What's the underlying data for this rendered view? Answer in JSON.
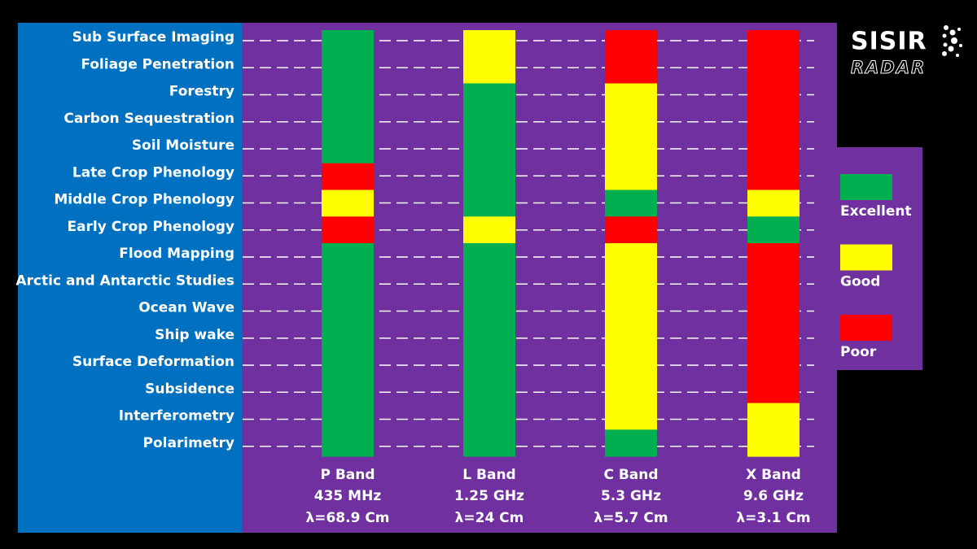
{
  "logo": {
    "name": "SISIR",
    "sub": "RADAR"
  },
  "applications": [
    "Sub Surface Imaging",
    "Foliage Penetration",
    "Forestry",
    "Carbon Sequestration",
    "Soil Moisture",
    "Late Crop Phenology",
    "Middle Crop Phenology",
    "Early Crop Phenology",
    "Flood Mapping",
    "Arctic and Antarctic Studies",
    "Ocean Wave",
    "Ship wake",
    "Surface Deformation",
    "Subsidence",
    "Interferometry",
    "Polarimetry"
  ],
  "bands": [
    {
      "name": "P Band",
      "frequency": "435 MHz",
      "wavelength": "λ=68.9 Cm",
      "ratings": [
        "Excellent",
        "Excellent",
        "Excellent",
        "Excellent",
        "Excellent",
        "Poor",
        "Good",
        "Poor",
        "Excellent",
        "Excellent",
        "Excellent",
        "Excellent",
        "Excellent",
        "Excellent",
        "Excellent",
        "Excellent"
      ]
    },
    {
      "name": "L Band",
      "frequency": "1.25 GHz",
      "wavelength": "λ=24 Cm",
      "ratings": [
        "Good",
        "Good",
        "Excellent",
        "Excellent",
        "Excellent",
        "Excellent",
        "Excellent",
        "Good",
        "Excellent",
        "Excellent",
        "Excellent",
        "Excellent",
        "Excellent",
        "Excellent",
        "Excellent",
        "Excellent"
      ]
    },
    {
      "name": "C Band",
      "frequency": "5.3 GHz",
      "wavelength": "λ=5.7 Cm",
      "ratings": [
        "Poor",
        "Poor",
        "Good",
        "Good",
        "Good",
        "Good",
        "Excellent",
        "Poor",
        "Good",
        "Good",
        "Good",
        "Good",
        "Good",
        "Good",
        "Good",
        "Excellent"
      ]
    },
    {
      "name": "X Band",
      "frequency": "9.6 GHz",
      "wavelength": "λ=3.1 Cm",
      "ratings": [
        "Poor",
        "Poor",
        "Poor",
        "Poor",
        "Poor",
        "Poor",
        "Good",
        "Excellent",
        "Poor",
        "Poor",
        "Poor",
        "Poor",
        "Poor",
        "Poor",
        "Good",
        "Good"
      ]
    }
  ],
  "legend": [
    {
      "label": "Excellent",
      "color": "#00b050"
    },
    {
      "label": "Good",
      "color": "#ffff00"
    },
    {
      "label": "Poor",
      "color": "#ff0000"
    }
  ]
}
